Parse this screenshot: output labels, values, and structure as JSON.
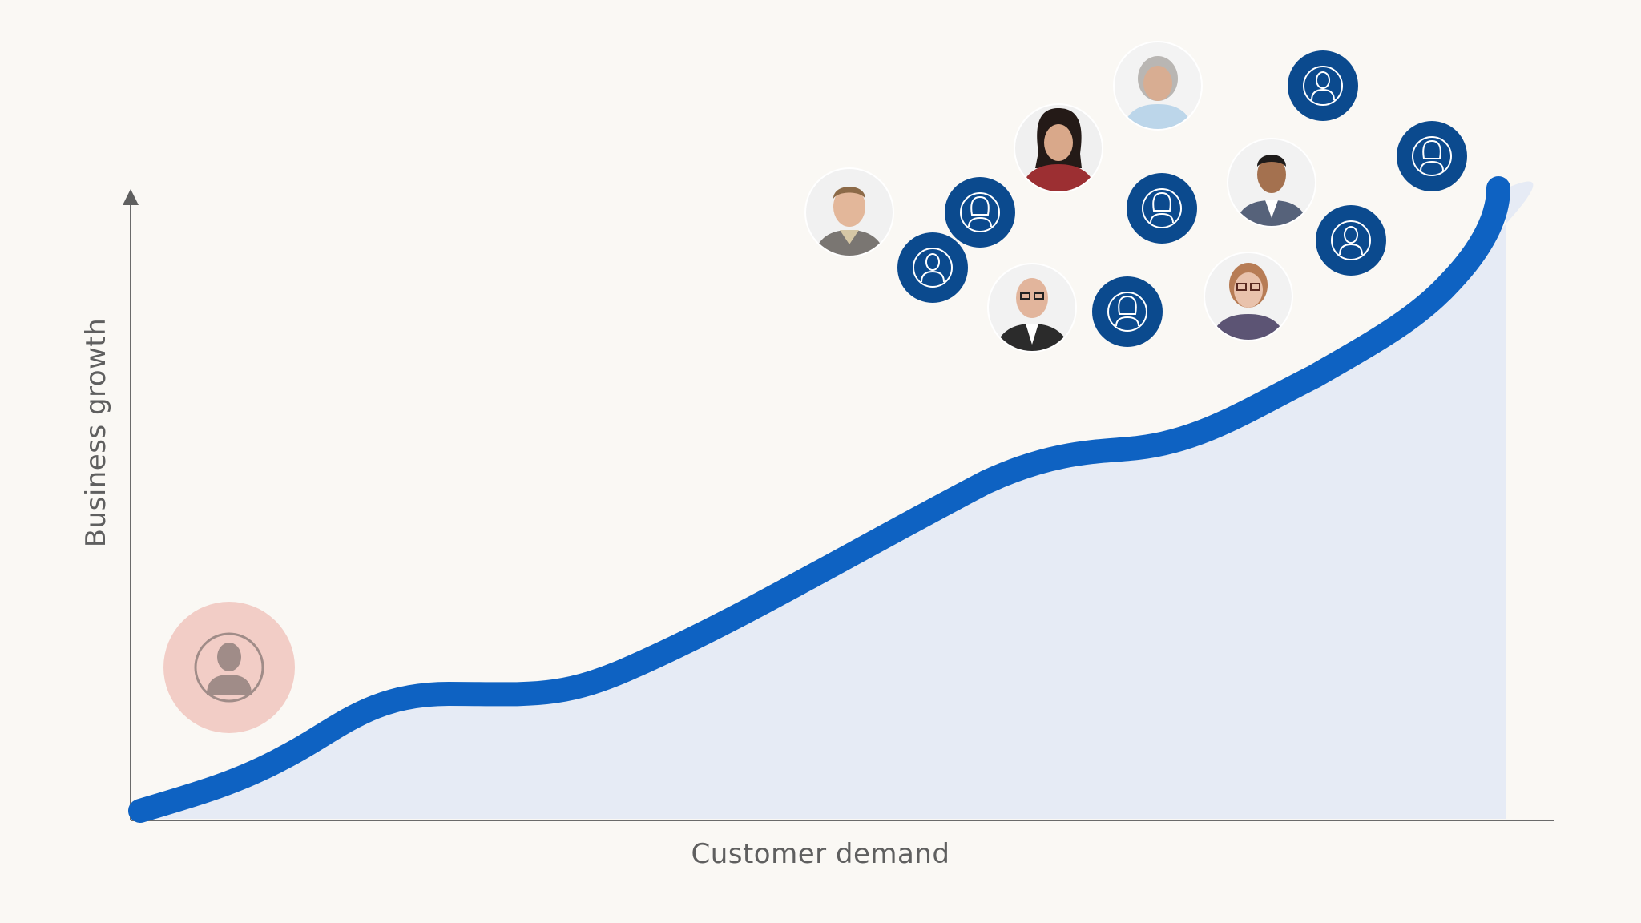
{
  "x_axis_label": "Customer demand",
  "y_axis_label": "Business growth",
  "colors": {
    "background": "#faf8f4",
    "curve": "#0e62c2",
    "area_fill": "#e6ebf5",
    "axis": "#6a6a6a",
    "customer_badge": "#0b4a8e",
    "first_customer_halo": "#f2cdc6"
  },
  "first_customer": {
    "icon": "person-icon"
  },
  "customers": [
    {
      "kind": "photo",
      "icon": "man-photo-avatar"
    },
    {
      "kind": "icon",
      "icon": "person-icon"
    },
    {
      "kind": "icon",
      "icon": "woman-icon"
    },
    {
      "kind": "photo",
      "icon": "woman-photo-avatar"
    },
    {
      "kind": "photo",
      "icon": "bald-man-photo-avatar"
    },
    {
      "kind": "icon",
      "icon": "woman-icon"
    },
    {
      "kind": "photo",
      "icon": "elderly-woman-photo-avatar"
    },
    {
      "kind": "icon",
      "icon": "woman-icon"
    },
    {
      "kind": "photo",
      "icon": "young-man-photo-avatar"
    },
    {
      "kind": "photo",
      "icon": "woman-glasses-photo-avatar"
    },
    {
      "kind": "icon",
      "icon": "person-icon"
    },
    {
      "kind": "icon",
      "icon": "person-icon"
    },
    {
      "kind": "icon",
      "icon": "woman-icon"
    }
  ]
}
